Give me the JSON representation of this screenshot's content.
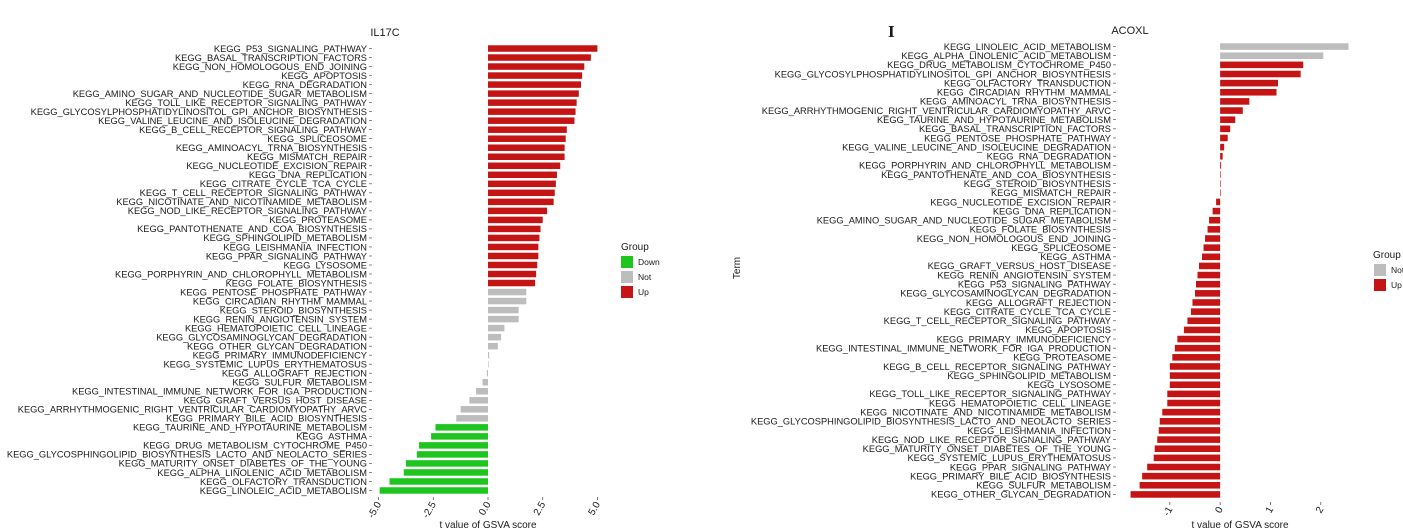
{
  "colors": {
    "Down": "#1fc51f",
    "Not": "#bdbdbd",
    "Up": "#c41414"
  },
  "panel_letter": "I",
  "chart_data": [
    {
      "type": "bar",
      "orientation": "horizontal",
      "title": "IL17C",
      "xlabel": "t value of GSVA score",
      "ylabel": "",
      "xlim": [
        -5.3,
        5.3
      ],
      "xticks": [
        "-5.0",
        "-2.5",
        "0.0",
        "2.5",
        "5.0"
      ],
      "xtick_values": [
        -5,
        -2.5,
        0,
        2.5,
        5
      ],
      "grid": false,
      "legend": {
        "title": "Group",
        "placement": "right",
        "entries": [
          "Down",
          "Not",
          "Up"
        ]
      },
      "categories": [
        "KEGG_P53_SIGNALING_PATHWAY",
        "KEGG_BASAL_TRANSCRIPTION_FACTORS",
        "KEGG_NON_HOMOLOGOUS_END_JOINING",
        "KEGG_APOPTOSIS",
        "KEGG_RNA_DEGRADATION",
        "KEGG_AMINO_SUGAR_AND_NUCLEOTIDE_SUGAR_METABOLISM",
        "KEGG_TOLL_LIKE_RECEPTOR_SIGNALING_PATHWAY",
        "KEGG_GLYCOSYLPHOSPHATIDYLINOSITOL_GPI_ANCHOR_BIOSYNTHESIS",
        "KEGG_VALINE_LEUCINE_AND_ISOLEUCINE_DEGRADATION",
        "KEGG_B_CELL_RECEPTOR_SIGNALING_PATHWAY",
        "KEGG_SPLICEOSOME",
        "KEGG_AMINOACYL_TRNA_BIOSYNTHESIS",
        "KEGG_MISMATCH_REPAIR",
        "KEGG_NUCLEOTIDE_EXCISION_REPAIR",
        "KEGG_DNA_REPLICATION",
        "KEGG_CITRATE_CYCLE_TCA_CYCLE",
        "KEGG_T_CELL_RECEPTOR_SIGNALING_PATHWAY",
        "KEGG_NICOTINATE_AND_NICOTINAMIDE_METABOLISM",
        "KEGG_NOD_LIKE_RECEPTOR_SIGNALING_PATHWAY",
        "KEGG_PROTEASOME",
        "KEGG_PANTOTHENATE_AND_COA_BIOSYNTHESIS",
        "KEGG_SPHINGOLIPID_METABOLISM",
        "KEGG_LEISHMANIA_INFECTION",
        "KEGG_PPAR_SIGNALING_PATHWAY",
        "KEGG_LYSOSOME",
        "KEGG_PORPHYRIN_AND_CHLOROPHYLL_METABOLISM",
        "KEGG_FOLATE_BIOSYNTHESIS",
        "KEGG_PENTOSE_PHOSPHATE_PATHWAY",
        "KEGG_CIRCADIAN_RHYTHM_MAMMAL",
        "KEGG_STEROID_BIOSYNTHESIS",
        "KEGG_RENIN_ANGIOTENSIN_SYSTEM",
        "KEGG_HEMATOPOIETIC_CELL_LINEAGE",
        "KEGG_GLYCOSAMINOGLYCAN_DEGRADATION",
        "KEGG_OTHER_GLYCAN_DEGRADATION",
        "KEGG_PRIMARY_IMMUNODEFICIENCY",
        "KEGG_SYSTEMIC_LUPUS_ERYTHEMATOSUS",
        "KEGG_ALLOGRAFT_REJECTION",
        "KEGG_SULFUR_METABOLISM",
        "KEGG_INTESTINAL_IMMUNE_NETWORK_FOR_IGA_PRODUCTION",
        "KEGG_GRAFT_VERSUS_HOST_DISEASE",
        "KEGG_ARRHYTHMOGENIC_RIGHT_VENTRICULAR_CARDIOMYOPATHY_ARVC",
        "KEGG_PRIMARY_BILE_ACID_BIOSYNTHESIS",
        "KEGG_TAURINE_AND_HYPOTAURINE_METABOLISM",
        "KEGG_ASTHMA",
        "KEGG_DRUG_METABOLISM_CYTOCHROME_P450",
        "KEGG_GLYCOSPHINGOLIPID_BIOSYNTHESIS_LACTO_AND_NEOLACTO_SERIES",
        "KEGG_MATURITY_ONSET_DIABETES_OF_THE_YOUNG",
        "KEGG_ALPHA_LINOLENIC_ACID_METABOLISM",
        "KEGG_OLFACTORY_TRANSDUCTION",
        "KEGG_LINOLEIC_ACID_METABOLISM"
      ],
      "values": [
        5.0,
        4.7,
        4.4,
        4.3,
        4.25,
        4.15,
        4.05,
        4.0,
        3.95,
        3.6,
        3.55,
        3.5,
        3.5,
        3.3,
        3.15,
        3.1,
        3.05,
        3.0,
        2.7,
        2.5,
        2.4,
        2.35,
        2.3,
        2.3,
        2.25,
        2.2,
        2.15,
        1.75,
        1.75,
        1.4,
        1.4,
        0.75,
        0.6,
        0.45,
        0.05,
        0.02,
        -0.05,
        -0.25,
        -0.55,
        -0.85,
        -1.25,
        -1.45,
        -2.4,
        -2.6,
        -3.15,
        -3.25,
        -3.75,
        -3.85,
        -4.5,
        -4.95
      ],
      "groups": [
        "Up",
        "Up",
        "Up",
        "Up",
        "Up",
        "Up",
        "Up",
        "Up",
        "Up",
        "Up",
        "Up",
        "Up",
        "Up",
        "Up",
        "Up",
        "Up",
        "Up",
        "Up",
        "Up",
        "Up",
        "Up",
        "Up",
        "Up",
        "Up",
        "Up",
        "Up",
        "Up",
        "Not",
        "Not",
        "Not",
        "Not",
        "Not",
        "Not",
        "Not",
        "Not",
        "Not",
        "Not",
        "Not",
        "Not",
        "Not",
        "Not",
        "Not",
        "Down",
        "Down",
        "Down",
        "Down",
        "Down",
        "Down",
        "Down",
        "Down"
      ]
    },
    {
      "type": "bar",
      "orientation": "horizontal",
      "title": "ACOXL",
      "xlabel": "t value of GSVA score",
      "ylabel": "Term",
      "xlim": [
        -1.95,
        2.6
      ],
      "xticks": [
        "-1",
        "0",
        "1",
        "2"
      ],
      "xtick_values": [
        -1,
        0,
        1,
        2
      ],
      "grid": false,
      "legend": {
        "title": "Group",
        "placement": "right",
        "entries": [
          "Not",
          "Up"
        ]
      },
      "categories": [
        "KEGG_LINOLEIC_ACID_METABOLISM",
        "KEGG_ALPHA_LINOLENIC_ACID_METABOLISM",
        "KEGG_DRUG_METABOLISM_CYTOCHROME_P450",
        "KEGG_GLYCOSYLPHOSPHATIDYLINOSITOL_GPI_ANCHOR_BIOSYNTHESIS",
        "KEGG_OLFACTORY_TRANSDUCTION",
        "KEGG_CIRCADIAN_RHYTHM_MAMMAL",
        "KEGG_AMINOACYL_TRNA_BIOSYNTHESIS",
        "KEGG_ARRHYTHMOGENIC_RIGHT_VENTRICULAR_CARDIOMYOPATHY_ARVC",
        "KEGG_TAURINE_AND_HYPOTAURINE_METABOLISM",
        "KEGG_BASAL_TRANSCRIPTION_FACTORS",
        "KEGG_PENTOSE_PHOSPHATE_PATHWAY",
        "KEGG_VALINE_LEUCINE_AND_ISOLEUCINE_DEGRADATION",
        "KEGG_RNA_DEGRADATION",
        "KEGG_PORPHYRIN_AND_CHLOROPHYLL_METABOLISM",
        "KEGG_PANTOTHENATE_AND_COA_BIOSYNTHESIS",
        "KEGG_STEROID_BIOSYNTHESIS",
        "KEGG_MISMATCH_REPAIR",
        "KEGG_NUCLEOTIDE_EXCISION_REPAIR",
        "KEGG_DNA_REPLICATION",
        "KEGG_AMINO_SUGAR_AND_NUCLEOTIDE_SUGAR_METABOLISM",
        "KEGG_FOLATE_BIOSYNTHESIS",
        "KEGG_NON_HOMOLOGOUS_END_JOINING",
        "KEGG_SPLICEOSOME",
        "KEGG_ASTHMA",
        "KEGG_GRAFT_VERSUS_HOST_DISEASE",
        "KEGG_RENIN_ANGIOTENSIN_SYSTEM",
        "KEGG_P53_SIGNALING_PATHWAY",
        "KEGG_GLYCOSAMINOGLYCAN_DEGRADATION",
        "KEGG_ALLOGRAFT_REJECTION",
        "KEGG_CITRATE_CYCLE_TCA_CYCLE",
        "KEGG_T_CELL_RECEPTOR_SIGNALING_PATHWAY",
        "KEGG_APOPTOSIS",
        "KEGG_PRIMARY_IMMUNODEFICIENCY",
        "KEGG_INTESTINAL_IMMUNE_NETWORK_FOR_IGA_PRODUCTION",
        "KEGG_PROTEASOME",
        "KEGG_B_CELL_RECEPTOR_SIGNALING_PATHWAY",
        "KEGG_SPHINGOLIPID_METABOLISM",
        "KEGG_LYSOSOME",
        "KEGG_TOLL_LIKE_RECEPTOR_SIGNALING_PATHWAY",
        "KEGG_HEMATOPOIETIC_CELL_LINEAGE",
        "KEGG_NICOTINATE_AND_NICOTINAMIDE_METABOLISM",
        "KEGG_GLYCOSPHINGOLIPID_BIOSYNTHESIS_LACTO_AND_NEOLACTO_SERIES",
        "KEGG_LEISHMANIA_INFECTION",
        "KEGG_NOD_LIKE_RECEPTOR_SIGNALING_PATHWAY",
        "KEGG_MATURITY_ONSET_DIABETES_OF_THE_YOUNG",
        "KEGG_SYSTEMIC_LUPUS_ERYTHEMATOSUS",
        "KEGG_PPAR_SIGNALING_PATHWAY",
        "KEGG_PRIMARY_BILE_ACID_BIOSYNTHESIS",
        "KEGG_SULFUR_METABOLISM",
        "KEGG_OTHER_GLYCAN_DEGRADATION"
      ],
      "values": [
        2.55,
        2.05,
        1.65,
        1.6,
        1.15,
        1.12,
        0.58,
        0.45,
        0.3,
        0.2,
        0.15,
        0.08,
        0.05,
        0.02,
        0.01,
        0.0,
        0.0,
        -0.08,
        -0.15,
        -0.22,
        -0.25,
        -0.3,
        -0.33,
        -0.36,
        -0.42,
        -0.45,
        -0.48,
        -0.5,
        -0.55,
        -0.58,
        -0.65,
        -0.72,
        -0.85,
        -0.9,
        -0.95,
        -1.0,
        -1.0,
        -1.0,
        -1.05,
        -1.05,
        -1.15,
        -1.2,
        -1.22,
        -1.25,
        -1.3,
        -1.32,
        -1.45,
        -1.55,
        -1.6,
        -1.78
      ],
      "groups": [
        "Not",
        "Not",
        "Up",
        "Up",
        "Up",
        "Up",
        "Up",
        "Up",
        "Up",
        "Up",
        "Up",
        "Up",
        "Up",
        "Up",
        "Up",
        "Up",
        "Up",
        "Up",
        "Up",
        "Up",
        "Up",
        "Up",
        "Up",
        "Up",
        "Up",
        "Up",
        "Up",
        "Up",
        "Up",
        "Up",
        "Up",
        "Up",
        "Up",
        "Up",
        "Up",
        "Up",
        "Up",
        "Up",
        "Up",
        "Up",
        "Up",
        "Up",
        "Up",
        "Up",
        "Up",
        "Up",
        "Up",
        "Up",
        "Up",
        "Up"
      ]
    }
  ]
}
